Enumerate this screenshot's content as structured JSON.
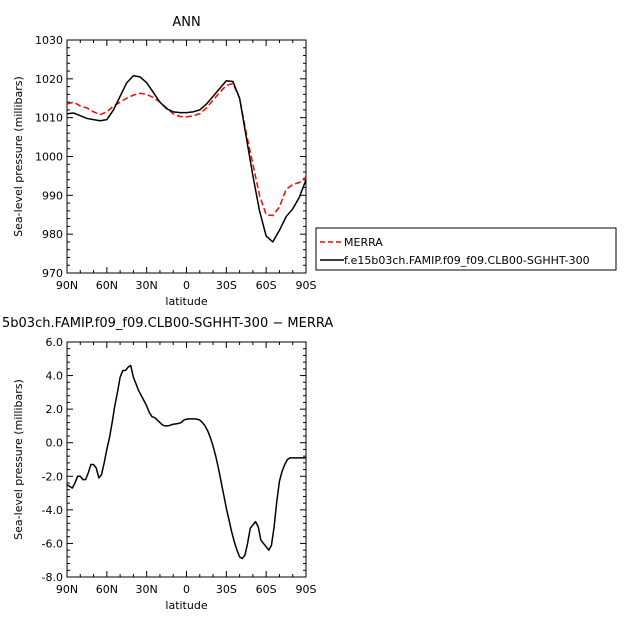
{
  "chart_data": [
    {
      "type": "line",
      "title": "ANN",
      "xlabel": "latitude",
      "ylabel": "Sea-level pressure (millibars)",
      "x_ticks": [
        "90N",
        "60N",
        "30N",
        "0",
        "30S",
        "60S",
        "90S"
      ],
      "x_tick_values": [
        90,
        60,
        30,
        0,
        -30,
        -60,
        -90
      ],
      "xlim": [
        90,
        -90
      ],
      "ylim": [
        970,
        1030
      ],
      "y_ticks": [
        "970",
        "980",
        "990",
        "1000",
        "1010",
        "1020",
        "1030"
      ],
      "y_tick_values": [
        970,
        980,
        990,
        1000,
        1010,
        1020,
        1030
      ],
      "legend_position": "right",
      "series": [
        {
          "name": "MERRA",
          "color": "#ff0000",
          "dash": "dashed",
          "x": [
            90,
            85,
            80,
            75,
            70,
            65,
            60,
            55,
            50,
            45,
            40,
            35,
            30,
            25,
            20,
            15,
            10,
            5,
            0,
            -5,
            -10,
            -15,
            -20,
            -25,
            -30,
            -35,
            -40,
            -45,
            -50,
            -55,
            -60,
            -65,
            -70,
            -75,
            -80,
            -85,
            -90
          ],
          "y": [
            1013.5,
            1014,
            1013,
            1012.5,
            1011.5,
            1010.8,
            1011.5,
            1013,
            1014,
            1015,
            1015.8,
            1016.3,
            1016,
            1015.2,
            1014,
            1012.5,
            1011,
            1010.3,
            1010.2,
            1010.5,
            1011,
            1012.5,
            1014.5,
            1016.5,
            1018.3,
            1018.8,
            1015,
            1006,
            998,
            990,
            985,
            984.8,
            987,
            991.5,
            992.8,
            993.3,
            994.8
          ]
        },
        {
          "name": "f.e15b03ch.FAMIP.f09_f09.CLB00-SGHHT-300",
          "color": "#000000",
          "dash": "solid",
          "x": [
            90,
            85,
            80,
            75,
            70,
            65,
            60,
            55,
            50,
            45,
            40,
            35,
            30,
            25,
            20,
            15,
            10,
            5,
            0,
            -5,
            -10,
            -15,
            -20,
            -25,
            -30,
            -35,
            -40,
            -45,
            -50,
            -55,
            -60,
            -65,
            -70,
            -75,
            -80,
            -85,
            -90
          ],
          "y": [
            1011,
            1011.2,
            1010.5,
            1009.8,
            1009.5,
            1009.2,
            1009.5,
            1012,
            1015.5,
            1019,
            1020.8,
            1020.5,
            1019,
            1016.5,
            1014,
            1012.3,
            1011.5,
            1011.3,
            1011.3,
            1011.5,
            1012,
            1013.5,
            1015.5,
            1017.5,
            1019.5,
            1019.3,
            1015,
            1005,
            995,
            986,
            979.5,
            978,
            981,
            984.5,
            986.5,
            989.5,
            994
          ]
        }
      ]
    },
    {
      "type": "line",
      "title": "5b03ch.FAMIP.f09_f09.CLB00-SGHHT-300 − MERRA",
      "xlabel": "latitude",
      "ylabel": "Sea-level pressure (millibars)",
      "x_ticks": [
        "90N",
        "60N",
        "30N",
        "0",
        "30S",
        "60S",
        "90S"
      ],
      "x_tick_values": [
        90,
        60,
        30,
        0,
        -30,
        -60,
        -90
      ],
      "xlim": [
        90,
        -90
      ],
      "ylim": [
        -8,
        6
      ],
      "y_ticks": [
        "-8.0",
        "-6.0",
        "-4.0",
        "-2.0",
        "0.0",
        "2.0",
        "4.0",
        "6.0"
      ],
      "y_tick_values": [
        -8,
        -6,
        -4,
        -2,
        0,
        2,
        4,
        6
      ],
      "series": [
        {
          "color": "#000000",
          "dash": "solid",
          "x": [
            90,
            88,
            86,
            84,
            82,
            80,
            78,
            76,
            74,
            72,
            70,
            68,
            66,
            64,
            62,
            60,
            58,
            56,
            54,
            52,
            50,
            48,
            46,
            44,
            42,
            40,
            38,
            36,
            34,
            32,
            30,
            28,
            26,
            24,
            22,
            20,
            18,
            16,
            14,
            12,
            10,
            8,
            6,
            4,
            2,
            0,
            -2,
            -4,
            -6,
            -8,
            -10,
            -12,
            -14,
            -16,
            -18,
            -20,
            -22,
            -24,
            -26,
            -28,
            -30,
            -32,
            -34,
            -36,
            -38,
            -40,
            -42,
            -44,
            -46,
            -48,
            -50,
            -52,
            -54,
            -56,
            -58,
            -60,
            -62,
            -64,
            -66,
            -68,
            -70,
            -72,
            -74,
            -76,
            -78,
            -80,
            -82,
            -84,
            -86,
            -88,
            -90
          ],
          "y": [
            -2.5,
            -2.6,
            -2.7,
            -2.4,
            -2.0,
            -2.0,
            -2.2,
            -2.2,
            -1.8,
            -1.3,
            -1.3,
            -1.5,
            -2.1,
            -1.9,
            -1.2,
            -0.4,
            0.3,
            1.2,
            2.2,
            3.0,
            3.9,
            4.3,
            4.3,
            4.5,
            4.6,
            3.9,
            3.5,
            3.1,
            2.8,
            2.5,
            2.2,
            1.8,
            1.55,
            1.5,
            1.35,
            1.2,
            1.05,
            1.0,
            1.0,
            1.05,
            1.1,
            1.12,
            1.15,
            1.2,
            1.35,
            1.4,
            1.42,
            1.42,
            1.42,
            1.4,
            1.35,
            1.2,
            1.0,
            0.7,
            0.3,
            -0.2,
            -0.8,
            -1.5,
            -2.3,
            -3.1,
            -3.9,
            -4.6,
            -5.3,
            -5.9,
            -6.4,
            -6.8,
            -6.9,
            -6.7,
            -6.0,
            -5.1,
            -4.9,
            -4.7,
            -5.0,
            -5.8,
            -6.0,
            -6.2,
            -6.4,
            -6.1,
            -5.0,
            -3.5,
            -2.3,
            -1.7,
            -1.3,
            -1.0,
            -0.9,
            -0.9,
            -0.9,
            -0.9,
            -0.9,
            -0.9,
            -0.9
          ]
        }
      ]
    }
  ]
}
